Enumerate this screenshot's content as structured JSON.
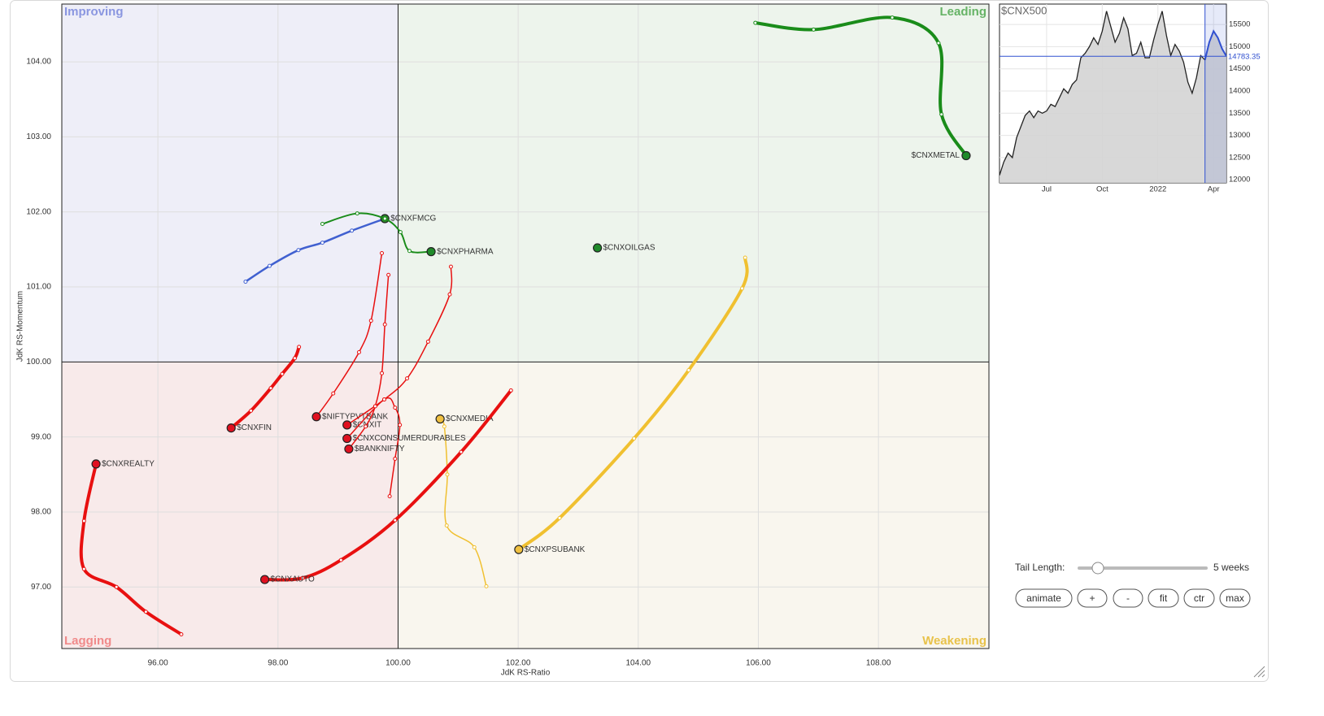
{
  "chart_data": [
    {
      "type": "rrg",
      "x_label": "JdK RS-Ratio",
      "y_label": "JdK RS-Momentum",
      "xlim": [
        94.4,
        109.84
      ],
      "ylim": [
        96.18,
        104.77
      ],
      "center": [
        100,
        100
      ],
      "grid": true,
      "xticks": [
        {
          "value": 96,
          "label": "96.00"
        },
        {
          "value": 98,
          "label": "98.00"
        },
        {
          "value": 100,
          "label": "100.00"
        },
        {
          "value": 102,
          "label": "102.00"
        },
        {
          "value": 104,
          "label": "104.00"
        },
        {
          "value": 106,
          "label": "106.00"
        },
        {
          "value": 108,
          "label": "108.00"
        }
      ],
      "yticks": [
        {
          "value": 97,
          "label": "97.00"
        },
        {
          "value": 98,
          "label": "98.00"
        },
        {
          "value": 99,
          "label": "99.00"
        },
        {
          "value": 100,
          "label": "100.00"
        },
        {
          "value": 101,
          "label": "101.00"
        },
        {
          "value": 102,
          "label": "102.00"
        },
        {
          "value": 103,
          "label": "103.00"
        },
        {
          "value": 104,
          "label": "104.00"
        }
      ],
      "quadrants": [
        {
          "name": "Improving",
          "color": "#eeeef8",
          "label_color": "#8a96e0"
        },
        {
          "name": "Leading",
          "color": "#edf4ec",
          "label_color": "#66b366"
        },
        {
          "name": "Lagging",
          "color": "#f8eaea",
          "label_color": "#f08a8a"
        },
        {
          "name": "Weakening",
          "color": "#f9f6ee",
          "label_color": "#e8c24a"
        }
      ],
      "series": [
        {
          "name": "$CNXMETAL",
          "color": "#1a8c1a",
          "head_color": "#1f8a2a",
          "line_width": 4,
          "x": [
            105.95,
            106.92,
            108.23,
            109.0,
            109.05,
            109.46
          ],
          "values": [
            104.52,
            104.43,
            104.59,
            104.25,
            103.3,
            102.75
          ]
        },
        {
          "name": "$CNXFMCG",
          "color": "#4060d0",
          "head_color": "#2a8a2a",
          "line_width": 2.5,
          "x": [
            97.46,
            97.86,
            98.34,
            98.74,
            99.23,
            99.78
          ],
          "values": [
            101.07,
            101.28,
            101.49,
            101.59,
            101.75,
            101.91
          ]
        },
        {
          "name": "$CNXPHARMA",
          "color": "#1a8c1a",
          "head_color": "#1f8a2a",
          "line_width": 2,
          "x": [
            98.74,
            99.32,
            99.78,
            100.04,
            100.19,
            100.55
          ],
          "values": [
            101.84,
            101.98,
            101.91,
            101.73,
            101.48,
            101.47
          ]
        },
        {
          "name": "$CNXOILGAS",
          "color": "#1a8c1a",
          "head_color": "#1f8a2a",
          "line_width": 2,
          "x": [
            103.32
          ],
          "values": [
            101.52
          ]
        },
        {
          "name": "$CNXPSUBANK",
          "color": "#f0c030",
          "head_color": "#f0c040",
          "line_width": 4,
          "x": [
            105.78,
            105.73,
            104.84,
            103.93,
            102.69,
            102.01
          ],
          "values": [
            101.39,
            100.98,
            99.89,
            98.98,
            97.92,
            97.5
          ]
        },
        {
          "name": "$CNXMEDIA",
          "color": "#f0c030",
          "head_color": "#f0c040",
          "line_width": 1.5,
          "x": [
            101.47,
            101.27,
            100.81,
            100.82,
            100.77,
            100.7
          ],
          "values": [
            97.01,
            97.53,
            97.82,
            98.5,
            99.14,
            99.24
          ]
        },
        {
          "name": "$CNXAUTO",
          "color": "#e81010",
          "head_color": "#e01020",
          "line_width": 4,
          "x": [
            101.88,
            101.05,
            99.95,
            99.05,
            98.41,
            97.78
          ],
          "values": [
            99.62,
            98.8,
            97.89,
            97.36,
            97.12,
            97.1
          ]
        },
        {
          "name": "$CNXREALTY",
          "color": "#e81010",
          "head_color": "#e01020",
          "line_width": 4,
          "x": [
            96.39,
            95.8,
            95.31,
            94.77,
            94.77,
            94.97
          ],
          "values": [
            96.37,
            96.67,
            97.0,
            97.24,
            97.88,
            98.64
          ]
        },
        {
          "name": "$CNXFIN",
          "color": "#e81010",
          "head_color": "#e01020",
          "line_width": 4,
          "x": [
            98.35,
            98.28,
            98.07,
            97.88,
            97.55,
            97.22
          ],
          "values": [
            100.2,
            100.05,
            99.84,
            99.65,
            99.35,
            99.12
          ]
        },
        {
          "name": "$NIFTYPVTBANK",
          "color": "#e81010",
          "head_color": "#e01020",
          "line_width": 1.5,
          "x": [
            99.73,
            99.55,
            99.35,
            98.92,
            98.64
          ],
          "values": [
            101.45,
            100.55,
            100.13,
            99.58,
            99.27
          ]
        },
        {
          "name": "$CNXIT",
          "color": "#e81010",
          "head_color": "#e01020",
          "line_width": 1.5,
          "x": [
            100.88,
            100.86,
            100.5,
            100.15,
            99.77,
            99.15
          ],
          "values": [
            101.27,
            100.9,
            100.27,
            99.78,
            99.5,
            99.16
          ]
        },
        {
          "name": "$CNXCONSUMERDURABLES",
          "color": "#e81010",
          "head_color": "#e01020",
          "line_width": 1.5,
          "x": [
            99.86,
            99.95,
            100.03,
            99.95,
            99.77,
            99.15
          ],
          "values": [
            98.21,
            98.71,
            99.16,
            99.39,
            99.5,
            98.98
          ]
        },
        {
          "name": "$BANKNIFTY",
          "color": "#e81010",
          "head_color": "#e01020",
          "line_width": 1.5,
          "x": [
            99.84,
            99.78,
            99.73,
            99.62,
            99.46,
            99.18
          ],
          "values": [
            101.16,
            100.5,
            99.85,
            99.41,
            99.14,
            98.84
          ]
        }
      ]
    },
    {
      "type": "area",
      "title": "$CNX500",
      "color": "#222222",
      "fill": "#d4d4d4",
      "highlight_color": "#3050d0",
      "ylim": [
        11930,
        15960
      ],
      "yticks": [
        12000,
        12500,
        13000,
        13500,
        14000,
        14500,
        15000,
        15500
      ],
      "categories": [
        null,
        null,
        null,
        null,
        null,
        null,
        null,
        null,
        null,
        null,
        null,
        "Jul",
        null,
        null,
        null,
        null,
        null,
        null,
        null,
        null,
        null,
        null,
        null,
        null,
        "Oct",
        null,
        null,
        null,
        null,
        null,
        null,
        null,
        null,
        null,
        null,
        null,
        null,
        "2022",
        null,
        null,
        null,
        null,
        null,
        null,
        null,
        null,
        null,
        null,
        null,
        null,
        "Apr",
        null,
        null,
        null
      ],
      "values": [
        12100,
        12400,
        12600,
        12500,
        12950,
        13200,
        13450,
        13550,
        13400,
        13550,
        13500,
        13550,
        13700,
        13650,
        13850,
        14050,
        13950,
        14150,
        14250,
        14750,
        14850,
        15000,
        15200,
        15050,
        15350,
        15800,
        15450,
        15100,
        15300,
        15650,
        15400,
        14800,
        14850,
        15100,
        14750,
        14750,
        15150,
        15500,
        15800,
        15250,
        14800,
        15050,
        14900,
        14650,
        14200,
        13950,
        14300,
        14800,
        14700,
        15100,
        15350,
        15200,
        14950,
        14783.35
      ]
    }
  ],
  "controls": {
    "tail_label": "Tail Length:",
    "tail_length": 5,
    "tail_length_label": "5 weeks",
    "buttons": [
      "animate",
      "+",
      "-",
      "fit",
      "ctr",
      "max"
    ]
  }
}
